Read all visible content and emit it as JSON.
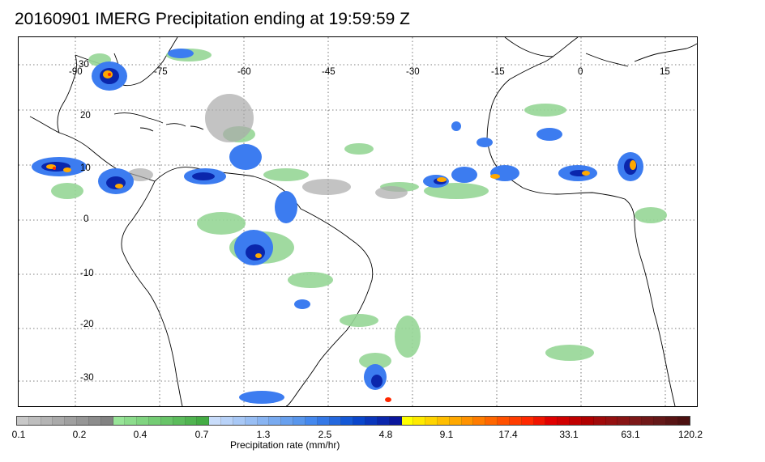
{
  "title": "20160901 IMERG Precipitation ending at 19:59:59 Z",
  "map": {
    "lon_labels": [
      "-90",
      "-75",
      "-60",
      "-45",
      "-30",
      "-15",
      "0",
      "15"
    ],
    "lat_labels": [
      "30",
      "20",
      "10",
      "0",
      "-10",
      "-20",
      "-30"
    ],
    "lon_range": [
      -95,
      23
    ],
    "lat_range": [
      36,
      -38
    ],
    "gridline_style": "dotted"
  },
  "colorbar": {
    "label": "Precipitation rate (mm/hr)",
    "tick_labels": [
      "0.1",
      "0.2",
      "0.4",
      "0.7",
      "1.3",
      "2.5",
      "4.8",
      "9.1",
      "17.4",
      "33.1",
      "63.1",
      "120.2"
    ],
    "colors": [
      "#c8c8c8",
      "#bebebe",
      "#b4b4b4",
      "#aaaaaa",
      "#a0a0a0",
      "#969696",
      "#8c8c8c",
      "#828282",
      "#98e598",
      "#8cdc8c",
      "#80d480",
      "#74cc74",
      "#68c468",
      "#5cbc5c",
      "#50b450",
      "#44ac44",
      "#c8dcfa",
      "#b8d2f8",
      "#a8c8f6",
      "#98bef4",
      "#88b4f2",
      "#78aaf0",
      "#68a0ee",
      "#5896ec",
      "#4488ee",
      "#3478e6",
      "#2468de",
      "#1458d6",
      "#0a46cc",
      "#0a36bc",
      "#0a26ac",
      "#0a169c",
      "#ffff00",
      "#ffea00",
      "#ffd400",
      "#ffbe00",
      "#ffa800",
      "#ff9200",
      "#ff7c00",
      "#ff6600",
      "#ff5000",
      "#ff3c00",
      "#ff2800",
      "#f01400",
      "#e00000",
      "#d00000",
      "#c00000",
      "#b00000",
      "#a00a0a",
      "#941010",
      "#881414",
      "#7c1818",
      "#701818",
      "#641818",
      "#581414",
      "#4c1010"
    ]
  }
}
